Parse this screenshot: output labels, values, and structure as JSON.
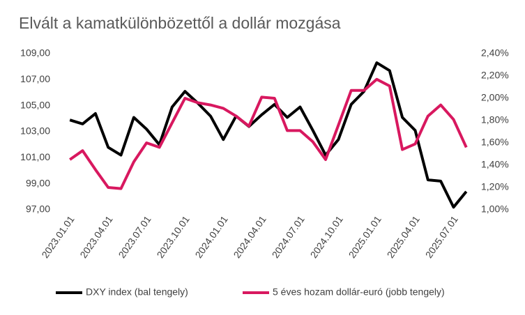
{
  "chart_data": {
    "type": "line",
    "title": "Elvált a kamatkülönbözettől a dollár mozgása",
    "categories": [
      "2023.01.01",
      null,
      null,
      "2023.04.01",
      null,
      null,
      "2023.07.01",
      null,
      null,
      "2023.10.01",
      null,
      null,
      "2024.01.01",
      null,
      null,
      "2024.04.01",
      null,
      null,
      "2024.07.01",
      null,
      null,
      "2024.10.01",
      null,
      null,
      "2025.01.01",
      null,
      null,
      "2025.04.01",
      null,
      null,
      "2025.07.01",
      null
    ],
    "series": [
      {
        "name": "DXY index (bal tengely)",
        "color": "#000000",
        "axis": "y",
        "values": [
          103.9,
          103.6,
          104.4,
          101.8,
          101.2,
          104.1,
          103.2,
          102.0,
          104.9,
          106.1,
          105.2,
          104.2,
          102.4,
          104.2,
          103.4,
          104.3,
          105.1,
          104.1,
          104.9,
          103.1,
          101.2,
          102.4,
          105.1,
          106.1,
          108.3,
          107.7,
          104.1,
          103.1,
          99.3,
          99.2,
          97.2,
          98.4
        ]
      },
      {
        "name": "5 éves hozam dollár-euró (jobb tengely)",
        "color": "#d8185f",
        "axis": "y2",
        "values": [
          1.45,
          1.53,
          1.36,
          1.2,
          1.19,
          1.43,
          1.6,
          1.56,
          1.78,
          2.0,
          1.96,
          1.94,
          1.91,
          1.84,
          1.75,
          2.01,
          2.0,
          1.71,
          1.71,
          1.61,
          1.45,
          1.76,
          2.07,
          2.07,
          2.17,
          2.11,
          1.54,
          1.59,
          1.84,
          1.94,
          1.81,
          1.56
        ]
      }
    ],
    "ylim": [
      97,
      109
    ],
    "yticks": [
      {
        "value": 97,
        "label": "97,00"
      },
      {
        "value": 99,
        "label": "99,00"
      },
      {
        "value": 101,
        "label": "101,00"
      },
      {
        "value": 103,
        "label": "103,00"
      },
      {
        "value": 105,
        "label": "105,00"
      },
      {
        "value": 107,
        "label": "107,00"
      },
      {
        "value": 109,
        "label": "109,00"
      }
    ],
    "y2lim": [
      1.0,
      2.4
    ],
    "y2ticks": [
      {
        "value": 1.0,
        "label": "1,00%"
      },
      {
        "value": 1.2,
        "label": "1,20%"
      },
      {
        "value": 1.4,
        "label": "1,40%"
      },
      {
        "value": 1.6,
        "label": "1,60%"
      },
      {
        "value": 1.8,
        "label": "1,80%"
      },
      {
        "value": 2.0,
        "label": "2,00%"
      },
      {
        "value": 2.2,
        "label": "2,20%"
      },
      {
        "value": 2.4,
        "label": "2,40%"
      }
    ],
    "grid": false,
    "legend": "bottom"
  }
}
